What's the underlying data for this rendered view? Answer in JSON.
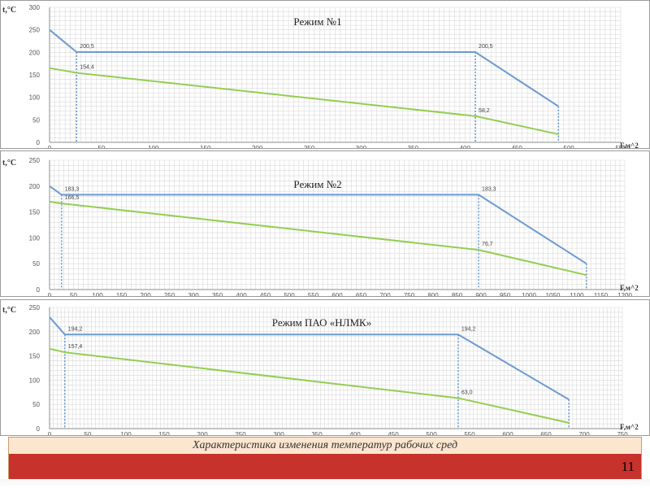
{
  "caption": "Характеристика изменения температур рабочих сред",
  "page_number": "11",
  "colors": {
    "hot": "#6d9bd1",
    "cold": "#92cf50",
    "grid": "#d9d9d9",
    "footer_bar": "#c7322c",
    "caption_bg": "#fde6cf"
  },
  "chart_data": [
    {
      "type": "line",
      "title": "Режим №1",
      "xlabel": "F,м^2",
      "ylabel": "t,°С",
      "xlim": [
        0,
        550
      ],
      "ylim": [
        0,
        300
      ],
      "x_ticks": [
        0,
        50,
        100,
        150,
        200,
        250,
        300,
        350,
        400,
        450,
        500,
        550
      ],
      "y_ticks": [
        0,
        50,
        100,
        150,
        200,
        250,
        300
      ],
      "series": [
        {
          "color": "#6d9bd1",
          "points": [
            [
              0,
              250
            ],
            [
              26,
              200.5
            ],
            [
              410,
              200.5
            ],
            [
              490,
              80
            ]
          ]
        },
        {
          "color": "#92cf50",
          "points": [
            [
              0,
              165
            ],
            [
              26,
              154.4
            ],
            [
              410,
              58.2
            ],
            [
              490,
              18
            ]
          ]
        }
      ],
      "annotations": [
        {
          "x": 26,
          "y": 200.5,
          "text": "200,5"
        },
        {
          "x": 410,
          "y": 200.5,
          "text": "200,5"
        },
        {
          "x": 26,
          "y": 154.4,
          "text": "154,4"
        },
        {
          "x": 410,
          "y": 58.2,
          "text": "58,2"
        }
      ],
      "vlines": [
        26,
        410,
        490
      ]
    },
    {
      "type": "line",
      "title": "Режим №2",
      "xlabel": "F,м^2",
      "ylabel": "t,°С",
      "xlim": [
        0,
        1200
      ],
      "ylim": [
        0,
        250
      ],
      "x_ticks": [
        0,
        50,
        100,
        150,
        200,
        250,
        300,
        350,
        400,
        450,
        500,
        550,
        600,
        650,
        700,
        750,
        800,
        850,
        900,
        950,
        1000,
        1050,
        1100,
        1150,
        1200
      ],
      "y_ticks": [
        0,
        50,
        100,
        150,
        200,
        250
      ],
      "series": [
        {
          "color": "#6d9bd1",
          "points": [
            [
              0,
              200
            ],
            [
              25,
              183.3
            ],
            [
              895,
              183.3
            ],
            [
              1120,
              50
            ]
          ]
        },
        {
          "color": "#92cf50",
          "points": [
            [
              0,
              170
            ],
            [
              25,
              166.5
            ],
            [
              895,
              76.7
            ],
            [
              1120,
              28
            ]
          ]
        }
      ],
      "annotations": [
        {
          "x": 25,
          "y": 183.3,
          "text": "183,3"
        },
        {
          "x": 895,
          "y": 183.3,
          "text": "183,3"
        },
        {
          "x": 25,
          "y": 166.5,
          "text": "166,5"
        },
        {
          "x": 895,
          "y": 76.7,
          "text": "76,7"
        }
      ],
      "vlines": [
        25,
        895,
        1120
      ]
    },
    {
      "type": "line",
      "title": "Режим ПАО «НЛМК»",
      "xlabel": "F,м^2",
      "ylabel": "t,°С",
      "xlim": [
        0,
        750
      ],
      "ylim": [
        0,
        250
      ],
      "x_ticks": [
        0,
        50,
        100,
        150,
        200,
        250,
        300,
        350,
        400,
        450,
        500,
        550,
        600,
        650,
        700,
        750
      ],
      "y_ticks": [
        0,
        50,
        100,
        150,
        200,
        250
      ],
      "series": [
        {
          "color": "#6d9bd1",
          "points": [
            [
              0,
              230
            ],
            [
              20,
              194.2
            ],
            [
              535,
              194.2
            ],
            [
              680,
              60
            ]
          ]
        },
        {
          "color": "#92cf50",
          "points": [
            [
              0,
              165
            ],
            [
              20,
              157.4
            ],
            [
              535,
              63.0
            ],
            [
              680,
              12
            ]
          ]
        }
      ],
      "annotations": [
        {
          "x": 20,
          "y": 194.2,
          "text": "194,2"
        },
        {
          "x": 535,
          "y": 194.2,
          "text": "194,2"
        },
        {
          "x": 20,
          "y": 157.4,
          "text": "157,4"
        },
        {
          "x": 535,
          "y": 63.0,
          "text": "63,0"
        }
      ],
      "vlines": [
        20,
        535,
        680
      ]
    }
  ]
}
